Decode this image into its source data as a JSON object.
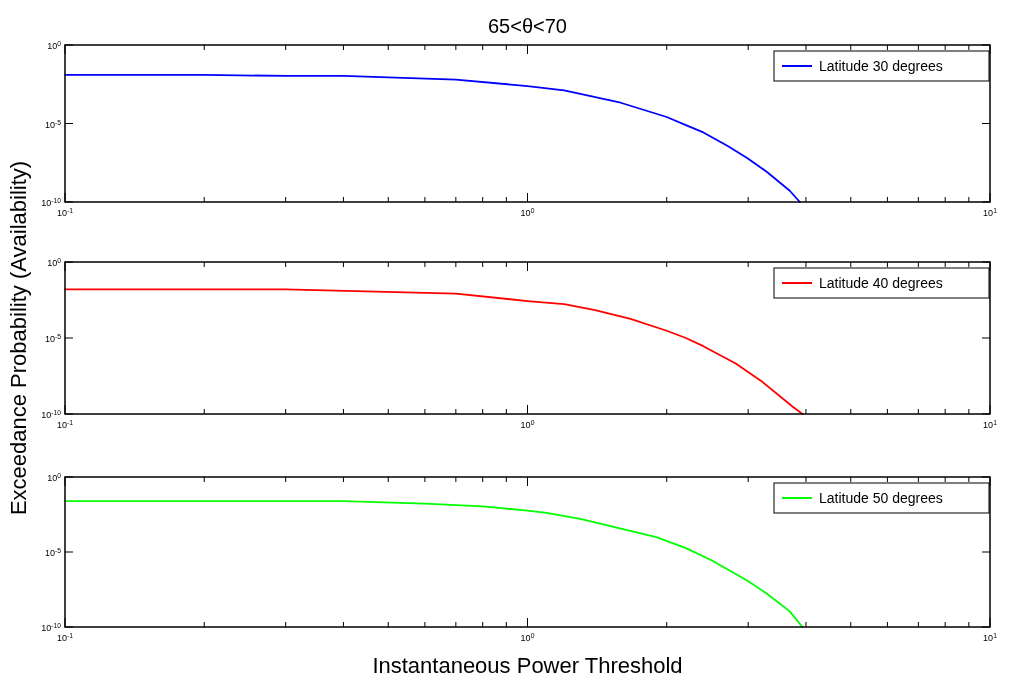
{
  "chart_data": [
    {
      "type": "line",
      "title": "65<θ<70",
      "log": "xy",
      "legend": "top right",
      "xlim": [
        0.1,
        10
      ],
      "ylim": [
        1e-10,
        1
      ],
      "xticks": [
        {
          "value": 0.1,
          "label": "10$^{-1}$"
        },
        {
          "value": 0.2,
          "label": null
        },
        {
          "value": 0.3,
          "label": null
        },
        {
          "value": 0.4,
          "label": null
        },
        {
          "value": 0.5,
          "label": null
        },
        {
          "value": 0.6,
          "label": null
        },
        {
          "value": 0.7,
          "label": null
        },
        {
          "value": 0.8,
          "label": null
        },
        {
          "value": 0.9,
          "label": null
        },
        {
          "value": 1,
          "label": "10$^{0}$"
        },
        {
          "value": 2,
          "label": null
        },
        {
          "value": 3,
          "label": null
        },
        {
          "value": 4,
          "label": null
        },
        {
          "value": 5,
          "label": null
        },
        {
          "value": 6,
          "label": null
        },
        {
          "value": 7,
          "label": null
        },
        {
          "value": 8,
          "label": null
        },
        {
          "value": 9,
          "label": null
        },
        {
          "value": 10,
          "label": "10$^{1}$"
        }
      ],
      "yticks": [
        {
          "value": 1e-10,
          "label": "10$^{-10}$"
        },
        {
          "value": 1e-05,
          "label": "10$^{-5}$"
        },
        {
          "value": 1,
          "label": "10$^{0}$"
        }
      ],
      "series": [
        {
          "name": "Latitude 30 degrees",
          "color": "#0000ff",
          "x": [
            0.1,
            0.2,
            0.3,
            0.4,
            0.7,
            1,
            1.2,
            1.59,
            2,
            2.2,
            2.4,
            2.71,
            2.99,
            3.3,
            3.69,
            3.88
          ],
          "values": [
            0.0126,
            0.0126,
            0.0107,
            0.0107,
            0.0063,
            0.0024,
            0.0013,
            0.00021,
            2.6e-05,
            7.8e-06,
            2.7e-06,
            3.7e-07,
            6.2e-08,
            7.9e-09,
            5.2e-10,
            1e-10
          ]
        }
      ]
    },
    {
      "type": "line",
      "log": "xy",
      "legend": "top right",
      "xlim": [
        0.1,
        10
      ],
      "ylim": [
        1e-10,
        1
      ],
      "xticks": [
        {
          "value": 0.1,
          "label": "10$^{-1}$"
        },
        {
          "value": 0.2,
          "label": null
        },
        {
          "value": 0.3,
          "label": null
        },
        {
          "value": 0.4,
          "label": null
        },
        {
          "value": 0.5,
          "label": null
        },
        {
          "value": 0.6,
          "label": null
        },
        {
          "value": 0.7,
          "label": null
        },
        {
          "value": 0.8,
          "label": null
        },
        {
          "value": 0.9,
          "label": null
        },
        {
          "value": 1,
          "label": "10$^{0}$"
        },
        {
          "value": 2,
          "label": null
        },
        {
          "value": 3,
          "label": null
        },
        {
          "value": 4,
          "label": null
        },
        {
          "value": 5,
          "label": null
        },
        {
          "value": 6,
          "label": null
        },
        {
          "value": 7,
          "label": null
        },
        {
          "value": 8,
          "label": null
        },
        {
          "value": 9,
          "label": null
        },
        {
          "value": 10,
          "label": "10$^{1}$"
        }
      ],
      "yticks": [
        {
          "value": 1e-10,
          "label": "10$^{-10}$"
        },
        {
          "value": 1e-05,
          "label": "10$^{-5}$"
        },
        {
          "value": 1,
          "label": "10$^{0}$"
        }
      ],
      "ylabel": "Exceedance Probability (Availability)",
      "series": [
        {
          "name": "Latitude 40 degrees",
          "color": "#ff0000",
          "x": [
            0.1,
            0.3,
            0.7,
            1,
            1.2,
            1.4,
            1.67,
            2,
            2.2,
            2.4,
            2.82,
            3.2,
            3.74,
            3.93
          ],
          "values": [
            0.016,
            0.016,
            0.0083,
            0.0027,
            0.0017,
            0.00069,
            0.00018,
            3e-05,
            1e-05,
            2.9e-06,
            2.1e-07,
            1.5e-08,
            3.1e-10,
            1e-10
          ]
        }
      ]
    },
    {
      "type": "line",
      "log": "xy",
      "legend": "top right",
      "xlim": [
        0.1,
        10
      ],
      "ylim": [
        1e-10,
        1
      ],
      "xticks": [
        {
          "value": 0.1,
          "label": "10$^{-1}$"
        },
        {
          "value": 0.2,
          "label": null
        },
        {
          "value": 0.3,
          "label": null
        },
        {
          "value": 0.4,
          "label": null
        },
        {
          "value": 0.5,
          "label": null
        },
        {
          "value": 0.6,
          "label": null
        },
        {
          "value": 0.7,
          "label": null
        },
        {
          "value": 0.8,
          "label": null
        },
        {
          "value": 0.9,
          "label": null
        },
        {
          "value": 1,
          "label": "10$^{0}$"
        },
        {
          "value": 2,
          "label": null
        },
        {
          "value": 3,
          "label": null
        },
        {
          "value": 4,
          "label": null
        },
        {
          "value": 5,
          "label": null
        },
        {
          "value": 6,
          "label": null
        },
        {
          "value": 7,
          "label": null
        },
        {
          "value": 8,
          "label": null
        },
        {
          "value": 9,
          "label": null
        },
        {
          "value": 10,
          "label": "10$^{1}$"
        }
      ],
      "yticks": [
        {
          "value": 1e-10,
          "label": "10$^{-10}$"
        },
        {
          "value": 1e-05,
          "label": "10$^{-5}$"
        },
        {
          "value": 1,
          "label": "10$^{0}$"
        }
      ],
      "xlabel": "Instantaneous Power Threshold",
      "series": [
        {
          "name": "Latitude 50 degrees",
          "color": "#00ff00",
          "x": [
            0.1,
            0.4,
            0.6,
            0.8,
            1,
            1.1,
            1.3,
            1.9,
            2.2,
            2.5,
            2.99,
            3.3,
            3.69,
            3.93
          ],
          "values": [
            0.0245,
            0.0245,
            0.017,
            0.011,
            0.0058,
            0.004,
            0.0016,
            9.8e-05,
            1.8e-05,
            2.8e-06,
            1.2e-07,
            1.6e-08,
            1.1e-09,
            1e-10
          ]
        }
      ]
    }
  ]
}
